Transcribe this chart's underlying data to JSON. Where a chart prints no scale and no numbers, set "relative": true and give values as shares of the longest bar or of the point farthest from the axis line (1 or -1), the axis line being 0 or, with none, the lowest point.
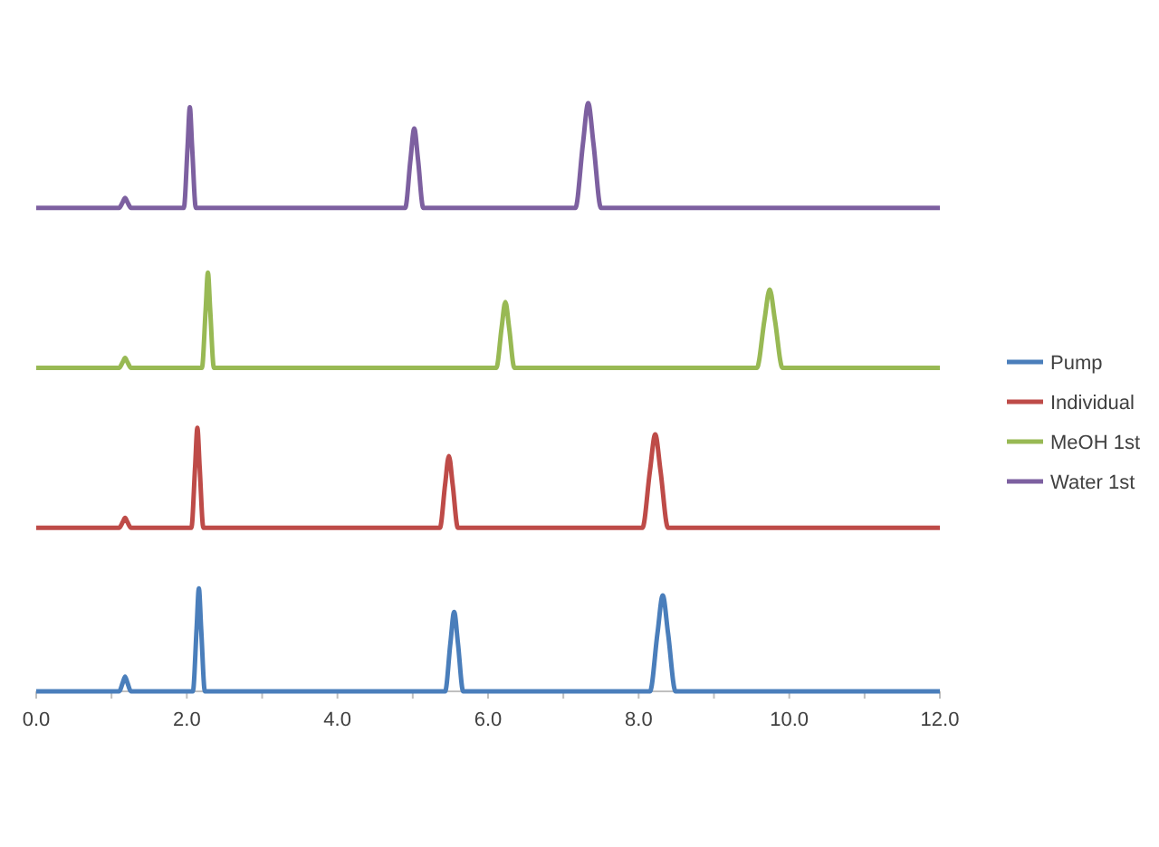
{
  "chart_data": {
    "type": "line",
    "relative": true,
    "legend": "right",
    "grid": false,
    "xlim": [
      0,
      12
    ],
    "xticks": [
      {
        "value": 0,
        "label": "0.0"
      },
      {
        "value": 2,
        "label": "2.0"
      },
      {
        "value": 4,
        "label": "4.0"
      },
      {
        "value": 6,
        "label": "6.0"
      },
      {
        "value": 8,
        "label": "8.0"
      },
      {
        "value": 10,
        "label": "10.0"
      },
      {
        "value": 12,
        "label": "12.0"
      }
    ],
    "series": [
      {
        "name": "Pump",
        "color": "#4a7ebb",
        "x": [
          0,
          1.1,
          1.15,
          1.18,
          1.21,
          1.26,
          2.08,
          2.13,
          2.16,
          2.19,
          2.24,
          5.43,
          5.5,
          5.55,
          5.6,
          5.67,
          8.15,
          8.25,
          8.32,
          8.39,
          8.49,
          12
        ],
        "values": [
          0,
          0,
          0.015,
          0.025,
          0.015,
          0,
          0,
          0.107,
          0.175,
          0.107,
          0,
          0,
          0.082,
          0.135,
          0.082,
          0,
          0,
          0.099,
          0.163,
          0.099,
          0,
          0
        ]
      },
      {
        "name": "Individual",
        "color": "#be4b48",
        "x": [
          0,
          1.1,
          1.15,
          1.18,
          1.21,
          1.26,
          2.06,
          2.11,
          2.14,
          2.17,
          2.22,
          5.36,
          5.43,
          5.48,
          5.53,
          5.6,
          8.05,
          8.15,
          8.22,
          8.29,
          8.39,
          12
        ],
        "values": [
          0.278,
          0.278,
          0.288,
          0.295,
          0.288,
          0.278,
          0.278,
          0.382,
          0.448,
          0.382,
          0.278,
          0.278,
          0.352,
          0.4,
          0.352,
          0.278,
          0.278,
          0.375,
          0.437,
          0.375,
          0.278,
          0.278
        ]
      },
      {
        "name": "MeOH 1st",
        "color": "#98b954",
        "x": [
          0,
          1.1,
          1.15,
          1.18,
          1.21,
          1.26,
          2.2,
          2.25,
          2.28,
          2.31,
          2.36,
          6.11,
          6.18,
          6.23,
          6.28,
          6.35,
          9.57,
          9.67,
          9.74,
          9.81,
          9.91,
          12
        ],
        "values": [
          0.55,
          0.55,
          0.56,
          0.567,
          0.56,
          0.55,
          0.55,
          0.649,
          0.712,
          0.649,
          0.55,
          0.55,
          0.618,
          0.662,
          0.618,
          0.55,
          0.55,
          0.631,
          0.683,
          0.631,
          0.55,
          0.55
        ]
      },
      {
        "name": "Water 1st",
        "color": "#7d60a0",
        "x": [
          0,
          1.1,
          1.15,
          1.18,
          1.21,
          1.26,
          1.96,
          2.01,
          2.04,
          2.07,
          2.12,
          4.9,
          4.97,
          5.02,
          5.07,
          5.14,
          7.16,
          7.26,
          7.33,
          7.4,
          7.5,
          12
        ],
        "values": [
          0.822,
          0.822,
          0.832,
          0.839,
          0.832,
          0.822,
          0.822,
          0.926,
          0.993,
          0.926,
          0.822,
          0.822,
          0.904,
          0.957,
          0.904,
          0.822,
          0.822,
          0.931,
          1,
          0.931,
          0.822,
          0.822
        ]
      }
    ]
  }
}
